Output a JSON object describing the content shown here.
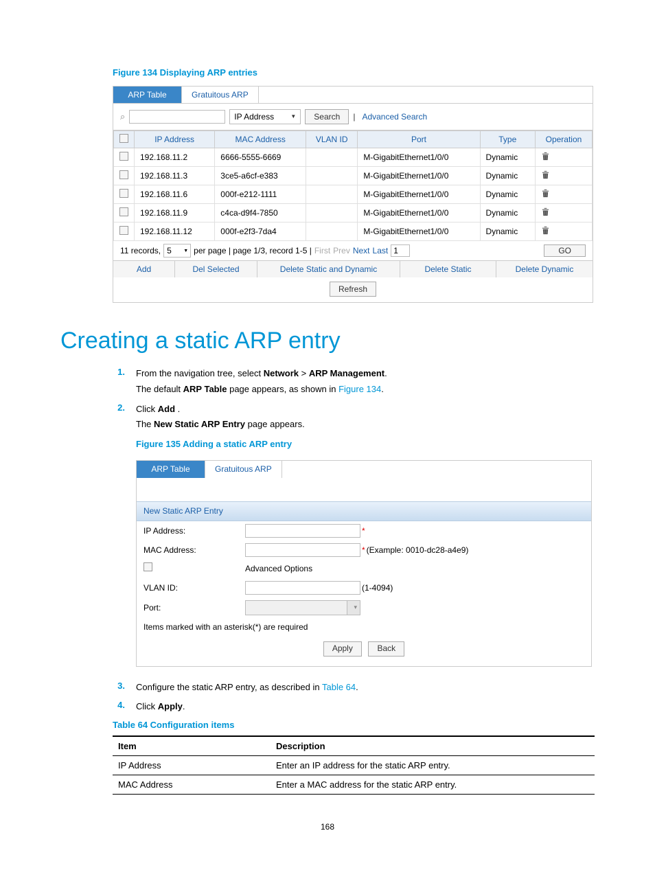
{
  "figure134": {
    "caption": "Figure 134 Displaying ARP entries",
    "tabs": {
      "active": "ARP Table",
      "other": "Gratuitous ARP"
    },
    "search": {
      "field_value": "IP Address",
      "button": "Search",
      "advanced": "Advanced Search"
    },
    "columns": [
      "IP Address",
      "MAC Address",
      "VLAN ID",
      "Port",
      "Type",
      "Operation"
    ],
    "rows": [
      {
        "ip": "192.168.11.2",
        "mac": "6666-5555-6669",
        "vlan": "",
        "port": "M-GigabitEthernet1/0/0",
        "type": "Dynamic"
      },
      {
        "ip": "192.168.11.3",
        "mac": "3ce5-a6cf-e383",
        "vlan": "",
        "port": "M-GigabitEthernet1/0/0",
        "type": "Dynamic"
      },
      {
        "ip": "192.168.11.6",
        "mac": "000f-e212-1111",
        "vlan": "",
        "port": "M-GigabitEthernet1/0/0",
        "type": "Dynamic"
      },
      {
        "ip": "192.168.11.9",
        "mac": "c4ca-d9f4-7850",
        "vlan": "",
        "port": "M-GigabitEthernet1/0/0",
        "type": "Dynamic"
      },
      {
        "ip": "192.168.11.12",
        "mac": "000f-e2f3-7da4",
        "vlan": "",
        "port": "M-GigabitEthernet1/0/0",
        "type": "Dynamic"
      }
    ],
    "pager": {
      "records_prefix": "11 records,",
      "per_page_value": "5",
      "middle": "per page | page 1/3, record 1-5 |",
      "first": "First",
      "prev": "Prev",
      "next": "Next",
      "last": "Last",
      "page_num": "1",
      "go": "GO"
    },
    "actions": {
      "add": "Add",
      "del_selected": "Del Selected",
      "del_static_dynamic": "Delete Static and Dynamic",
      "del_static": "Delete Static",
      "del_dynamic": "Delete Dynamic",
      "refresh": "Refresh"
    }
  },
  "heading": "Creating a static ARP entry",
  "steps": {
    "s1a": "From the navigation tree, select ",
    "s1a_b1": "Network",
    "s1a_gt": " > ",
    "s1a_b2": "ARP Management",
    "s1a_end": ".",
    "s1b_pre": "The default ",
    "s1b_b": "ARP Table",
    "s1b_post": " page appears, as shown in ",
    "s1b_link": "Figure 134",
    "s1b_end": ".",
    "s2a_pre": "Click ",
    "s2a_b": "Add",
    "s2a_post": " .",
    "s2b_pre": "The ",
    "s2b_b": "New Static ARP Entry",
    "s2b_post": " page appears.",
    "s3_pre": "Configure the static ARP entry, as described in ",
    "s3_link": "Table 64",
    "s3_end": ".",
    "s4_pre": "Click ",
    "s4_b": "Apply",
    "s4_end": "."
  },
  "figure135": {
    "caption": "Figure 135 Adding a static ARP entry",
    "tabs": {
      "active": "ARP Table",
      "other": "Gratuitous ARP"
    },
    "section_header": "New Static ARP Entry",
    "rows": {
      "ip_label": "IP Address:",
      "mac_label": "MAC Address:",
      "mac_hint": "(Example: 0010-dc28-a4e9)",
      "adv_label": "Advanced Options",
      "vlan_label": "VLAN ID:",
      "vlan_hint": "(1-4094)",
      "port_label": "Port:"
    },
    "note": "Items marked with an asterisk(*) are required",
    "buttons": {
      "apply": "Apply",
      "back": "Back"
    }
  },
  "table64": {
    "caption": "Table 64 Configuration items",
    "headers": {
      "item": "Item",
      "desc": "Description"
    },
    "rows": [
      {
        "item": "IP Address",
        "desc": "Enter an IP address for the static ARP entry."
      },
      {
        "item": "MAC Address",
        "desc": "Enter a MAC address for the static ARP entry."
      }
    ]
  },
  "page_number": "168"
}
